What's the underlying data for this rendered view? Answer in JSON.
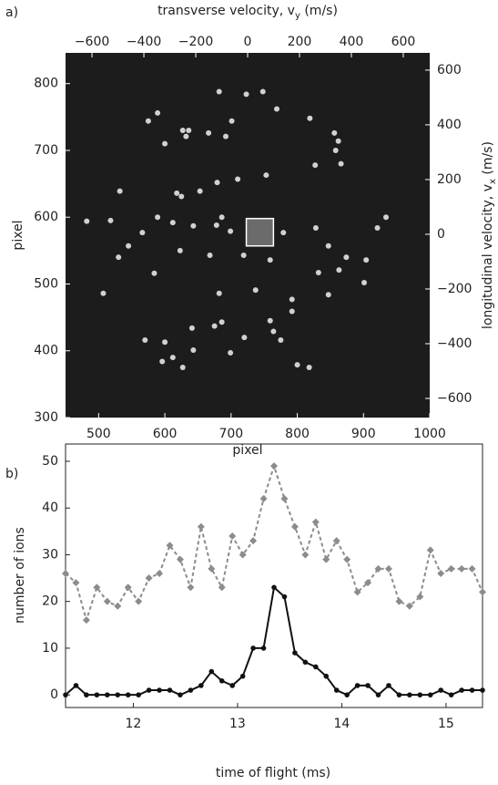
{
  "chart_data": [
    {
      "type": "scatter",
      "panel_label": "a)",
      "title_parts": [
        "transverse velocity, v",
        "y",
        " (m/s)"
      ],
      "xlabel": "pixel",
      "ylabel": "pixel",
      "y2label_parts": [
        "longitudinal velocity, v",
        "x",
        " (m/s)"
      ],
      "background": "#1c1c1c",
      "color": "#e6e6e6",
      "xlim": [
        450,
        1000
      ],
      "xticks": [
        500,
        600,
        700,
        800,
        900,
        1000
      ],
      "ylim": [
        300,
        846
      ],
      "yticks": [
        300,
        400,
        500,
        600,
        700,
        800
      ],
      "x2lim": [
        -702,
        702
      ],
      "x2ticks": [
        {
          "value": -600,
          "label": "−600"
        },
        {
          "value": -400,
          "label": "−400"
        },
        {
          "value": -200,
          "label": "−200"
        },
        0,
        200,
        400,
        600
      ],
      "y2lim": [
        -670,
        663
      ],
      "y2ticks": [
        {
          "value": -600,
          "label": "−600"
        },
        {
          "value": -400,
          "label": "−400"
        },
        {
          "value": -200,
          "label": "−200"
        },
        0,
        200,
        400,
        600
      ],
      "highlight_box": {
        "x": [
          723,
          764
        ],
        "y": [
          557,
          598
        ]
      },
      "x": [
        682,
        723,
        748,
        575,
        589,
        627,
        632,
        636,
        666,
        692,
        701,
        769,
        819,
        856,
        862,
        858,
        600,
        866,
        827,
        753,
        679,
        710,
        618,
        625,
        653,
        532,
        589,
        612,
        643,
        678,
        686,
        699,
        566,
        518,
        482,
        545,
        530,
        584,
        623,
        668,
        719,
        759,
        779,
        828,
        847,
        874,
        904,
        921,
        934,
        832,
        863,
        901,
        507,
        682,
        737,
        792,
        847,
        759,
        792,
        675,
        686,
        641,
        600,
        570,
        720,
        764,
        612,
        643,
        596,
        627,
        699,
        775,
        800,
        818
      ],
      "y": [
        788,
        784,
        788,
        744,
        756,
        730,
        721,
        730,
        726,
        721,
        744,
        762,
        748,
        726,
        714,
        700,
        710,
        680,
        678,
        663,
        652,
        657,
        636,
        631,
        639,
        639,
        600,
        592,
        587,
        588,
        600,
        579,
        577,
        595,
        594,
        557,
        540,
        516,
        550,
        543,
        543,
        536,
        577,
        584,
        557,
        540,
        536,
        584,
        600,
        517,
        521,
        502,
        486,
        486,
        491,
        477,
        484,
        445,
        459,
        437,
        443,
        434,
        413,
        416,
        420,
        429,
        390,
        401,
        384,
        375,
        397,
        416,
        379,
        375
      ]
    },
    {
      "type": "line",
      "panel_label": "b)",
      "xlabel": "time of flight (ms)",
      "ylabel": "number of ions",
      "xlim": [
        11.35,
        15.35
      ],
      "xticks": [
        12,
        13,
        14,
        15
      ],
      "ylim": [
        -2.7,
        53.7
      ],
      "yticks": [
        0,
        10,
        20,
        30,
        40,
        50
      ],
      "x": [
        11.35,
        11.45,
        11.55,
        11.65,
        11.75,
        11.85,
        11.95,
        12.05,
        12.15,
        12.25,
        12.35,
        12.45,
        12.55,
        12.65,
        12.75,
        12.85,
        12.95,
        13.05,
        13.15,
        13.25,
        13.35,
        13.45,
        13.55,
        13.65,
        13.75,
        13.85,
        13.95,
        14.05,
        14.15,
        14.25,
        14.35,
        14.45,
        14.55,
        14.65,
        14.75,
        14.85,
        14.95,
        15.05,
        15.15,
        15.25,
        15.35
      ],
      "series": [
        {
          "color": "#8c8c8c",
          "dashed": true,
          "marker": "diamond",
          "values": [
            26,
            24,
            16,
            23,
            20,
            19,
            23,
            20,
            25,
            26,
            32,
            29,
            23,
            36,
            27,
            23,
            34,
            30,
            33,
            42,
            49,
            42,
            36,
            30,
            37,
            29,
            33,
            29,
            22,
            24,
            27,
            27,
            20,
            19,
            21,
            31,
            26,
            27,
            27,
            27,
            22
          ]
        },
        {
          "color": "#111111",
          "dashed": false,
          "marker": "circle",
          "values": [
            0,
            2,
            0,
            0,
            0,
            0,
            0,
            0,
            1,
            1,
            1,
            0,
            1,
            2,
            5,
            3,
            2,
            4,
            10,
            10,
            23,
            21,
            9,
            7,
            6,
            4,
            1,
            0,
            2,
            2,
            0,
            2,
            0,
            0,
            0,
            0,
            1,
            0,
            1,
            1,
            1
          ]
        }
      ]
    }
  ]
}
